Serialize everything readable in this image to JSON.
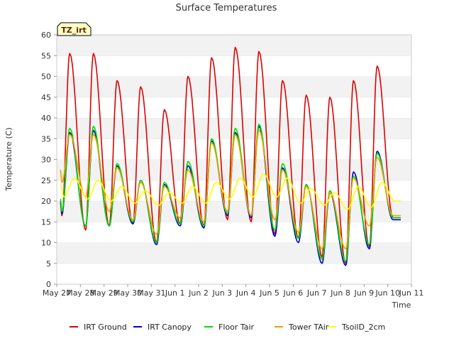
{
  "chart_data": {
    "type": "line",
    "title": "Surface Temperatures",
    "xlabel": "Time",
    "ylabel": "Temperature (C)",
    "ylim": [
      0,
      60
    ],
    "yticks": [
      0,
      5,
      10,
      15,
      20,
      25,
      30,
      35,
      40,
      45,
      50,
      55,
      60
    ],
    "xlim": [
      0,
      15
    ],
    "xticks": [
      {
        "x": 0,
        "label": "May 27"
      },
      {
        "x": 1,
        "label": "May 28"
      },
      {
        "x": 2,
        "label": "May 29"
      },
      {
        "x": 3,
        "label": "May 30"
      },
      {
        "x": 4,
        "label": "May 31"
      },
      {
        "x": 5,
        "label": "Jun 1"
      },
      {
        "x": 6,
        "label": "Jun 2"
      },
      {
        "x": 7,
        "label": "Jun 3"
      },
      {
        "x": 8,
        "label": "Jun 4"
      },
      {
        "x": 9,
        "label": "Jun 5"
      },
      {
        "x": 10,
        "label": "Jun 6"
      },
      {
        "x": 11,
        "label": "Jun 7"
      },
      {
        "x": 12,
        "label": "Jun 8"
      },
      {
        "x": 13,
        "label": "Jun 9"
      },
      {
        "x": 14,
        "label": "Jun 10"
      },
      {
        "x": 15,
        "label": "Jun 11"
      }
    ],
    "tag": "TZ_irt",
    "grid": "horizontal bands",
    "legend_position": "bottom",
    "series": [
      {
        "name": "IRT Ground",
        "color": "#dd0000",
        "daily_min": [
          16.5,
          13,
          14,
          14.5,
          10,
          14.5,
          14,
          15.5,
          15,
          12,
          11,
          6.5,
          5,
          9,
          16
        ],
        "daily_max": [
          55.5,
          55.5,
          49,
          47.5,
          42,
          50,
          54.5,
          57,
          56,
          49,
          45.5,
          45,
          49,
          52.5
        ]
      },
      {
        "name": "IRT Canopy",
        "color": "#0000cc",
        "daily_min": [
          17,
          14,
          14,
          14.5,
          9.5,
          14,
          13.5,
          16.5,
          16,
          11.5,
          10,
          5,
          4.5,
          8.5,
          15.5
        ],
        "daily_max": [
          36.5,
          37,
          28.5,
          25,
          24,
          28.5,
          34.5,
          36.5,
          38,
          28,
          24,
          22,
          27,
          32
        ]
      },
      {
        "name": "Floor Tair",
        "color": "#00dd00",
        "daily_min": [
          17.5,
          14,
          14,
          15,
          10,
          14.5,
          14,
          17,
          16.5,
          13,
          11,
          6,
          5.5,
          9.5,
          16
        ],
        "daily_max": [
          37.5,
          38,
          29,
          25,
          24.5,
          29.5,
          35,
          37.5,
          38.5,
          29,
          24,
          22.5,
          26,
          31.5
        ]
      },
      {
        "name": "Tower TAir",
        "color": "#f0a000",
        "daily_min": [
          24.5,
          21,
          17.5,
          15.5,
          12,
          16,
          15,
          17.5,
          16.5,
          15.5,
          12.5,
          8.5,
          8.5,
          14,
          16.5
        ],
        "daily_max": [
          36,
          36,
          28,
          24.5,
          23.5,
          27.5,
          34,
          36,
          37,
          27.5,
          23.5,
          22,
          25.5,
          30.5
        ]
      },
      {
        "name": "TsoilD_2cm",
        "color": "#ffff00",
        "daily_min": [
          21,
          20.5,
          20,
          19.5,
          19,
          19.5,
          19.5,
          20.5,
          21,
          21,
          19.5,
          19,
          18,
          18.5,
          20
        ],
        "daily_max": [
          25.5,
          25,
          23.5,
          22.5,
          22,
          23.5,
          24.5,
          25.5,
          26.5,
          25.5,
          23,
          22,
          23.5,
          24.5
        ]
      }
    ]
  },
  "legend": {
    "items": [
      {
        "label": "IRT Ground",
        "color": "#dd0000"
      },
      {
        "label": "IRT Canopy",
        "color": "#0000cc"
      },
      {
        "label": "Floor Tair",
        "color": "#00dd00"
      },
      {
        "label": "Tower TAir",
        "color": "#f0a000"
      },
      {
        "label": "TsoilD_2cm",
        "color": "#ffff00"
      }
    ]
  }
}
